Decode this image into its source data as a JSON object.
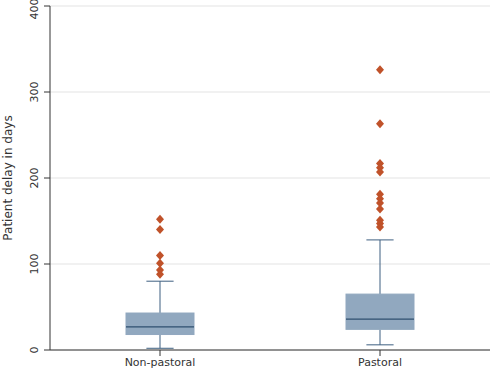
{
  "chart_data": {
    "type": "box",
    "categories": [
      "Non-pastoral",
      "Pastoral"
    ],
    "y_label": "Patient delay in days",
    "ylim": [
      0,
      400
    ],
    "yticks": [
      0,
      100,
      200,
      300,
      400
    ],
    "grid": true,
    "color": "#91a8bf",
    "marker": "diamond",
    "boxes": [
      {
        "whisker_low": 2,
        "q1": 18,
        "median": 27,
        "q3": 43,
        "whisker_high": 80,
        "outliers": [
          152,
          140,
          110,
          101,
          93,
          88
        ]
      },
      {
        "whisker_low": 6,
        "q1": 24,
        "median": 36,
        "q3": 65,
        "whisker_high": 128,
        "outliers": [
          326,
          263,
          217,
          212,
          207,
          181,
          176,
          171,
          164,
          151,
          147,
          143
        ]
      }
    ]
  }
}
